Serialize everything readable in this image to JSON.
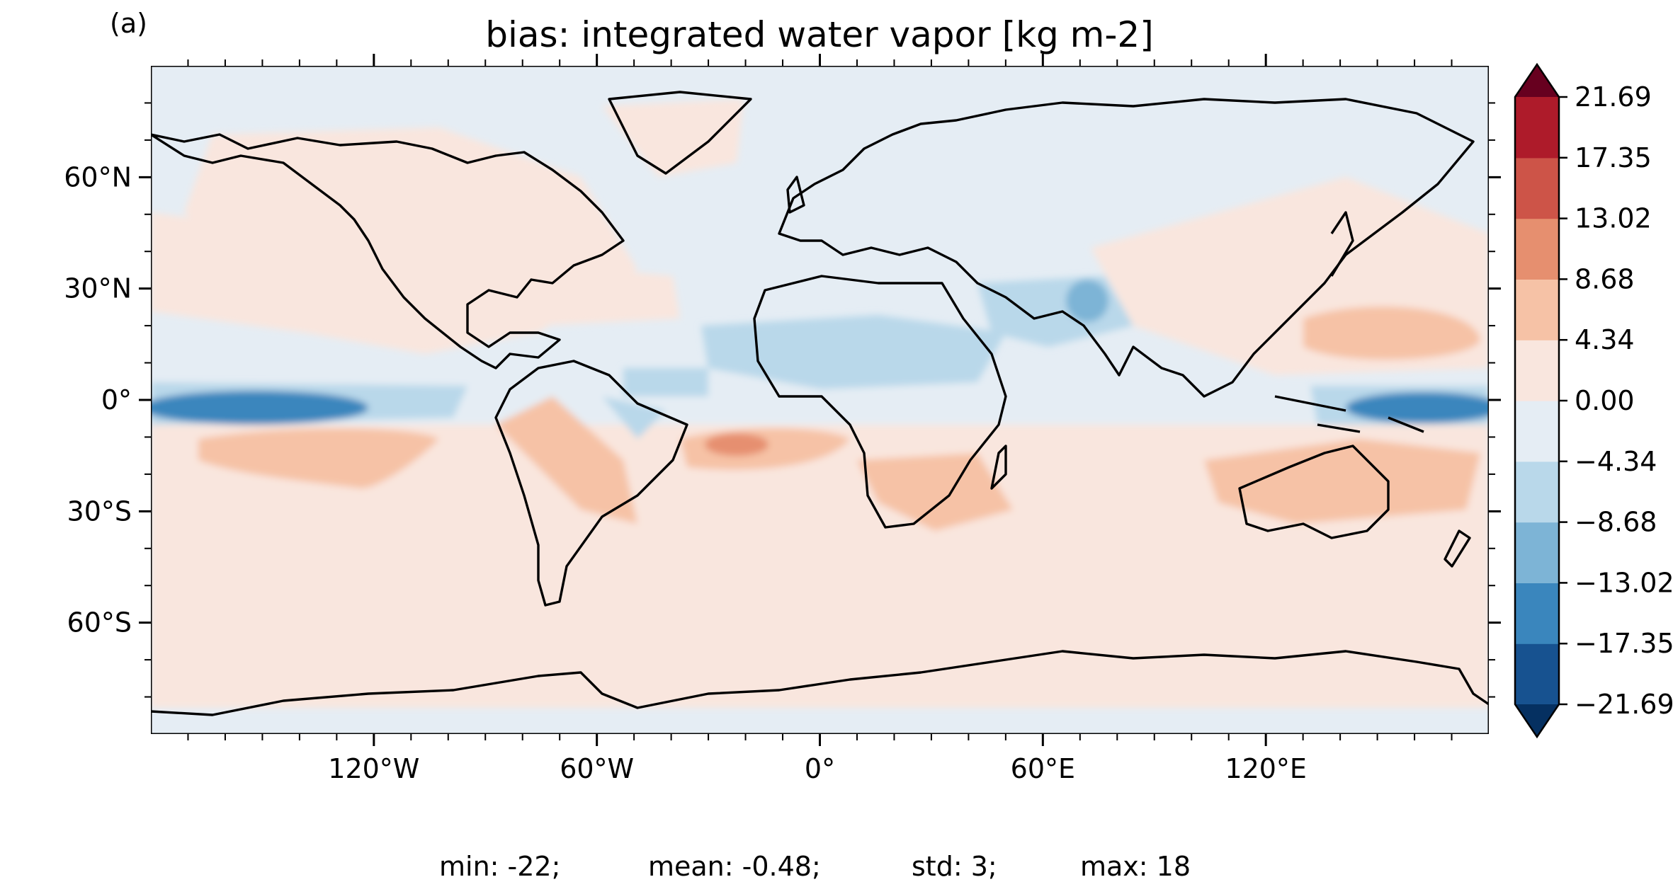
{
  "panel_label": "(a)",
  "title": "bias: integrated water vapor [kg m-2]",
  "map": {
    "projection": "PlateCarree",
    "lon_range": [
      -180,
      180
    ],
    "lat_range": [
      -90,
      90
    ],
    "lon_ticks": [
      {
        "lon": -120,
        "label": "120°W"
      },
      {
        "lon": -60,
        "label": "60°W"
      },
      {
        "lon": 0,
        "label": "0°"
      },
      {
        "lon": 60,
        "label": "60°E"
      },
      {
        "lon": 120,
        "label": "120°E"
      }
    ],
    "lat_ticks": [
      {
        "lat": 60,
        "label": "60°N"
      },
      {
        "lat": 30,
        "label": "30°N"
      },
      {
        "lat": 0,
        "label": "0°"
      },
      {
        "lat": -30,
        "label": "30°S"
      },
      {
        "lat": -60,
        "label": "60°S"
      }
    ],
    "coastlines": true,
    "colormap": "RdBu_r"
  },
  "colorbar": {
    "extend": "both",
    "levels": [
      -21.69,
      -17.35,
      -13.02,
      -8.68,
      -4.34,
      0.0,
      4.34,
      8.68,
      13.02,
      17.35,
      21.69
    ],
    "labels": [
      "21.69",
      "17.35",
      "13.02",
      "8.68",
      "4.34",
      "0.00",
      "−4.34",
      "−8.68",
      "−13.02",
      "−17.35",
      "−21.69"
    ],
    "colors": [
      "#175290",
      "#3a86bd",
      "#7db4d6",
      "#b9d8ea",
      "#e5edf4",
      "#f9e6de",
      "#f6c2a6",
      "#e68f6f",
      "#cd5448",
      "#ae1b2a"
    ],
    "under_color": "#053061",
    "over_color": "#67001f"
  },
  "stats": {
    "min": "min: -22;",
    "mean": "mean: -0.48;",
    "std": "std: 3;",
    "max": "max: 18"
  }
}
